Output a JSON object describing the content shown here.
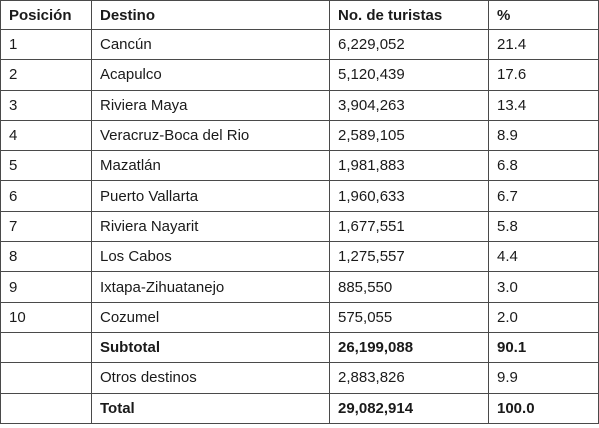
{
  "table": {
    "headers": [
      "Posición",
      "Destino",
      "No. de turistas",
      "%"
    ],
    "rows": [
      {
        "position": "1",
        "destination": "Cancún",
        "tourists": "6,229,052",
        "percent": "21.4"
      },
      {
        "position": "2",
        "destination": "Acapulco",
        "tourists": "5,120,439",
        "percent": "17.6"
      },
      {
        "position": "3",
        "destination": "Riviera Maya",
        "tourists": "3,904,263",
        "percent": "13.4"
      },
      {
        "position": "4",
        "destination": "Veracruz-Boca del Rio",
        "tourists": "2,589,105",
        "percent": "8.9"
      },
      {
        "position": "5",
        "destination": "Mazatlán",
        "tourists": "1,981,883",
        "percent": "6.8"
      },
      {
        "position": "6",
        "destination": "Puerto Vallarta",
        "tourists": "1,960,633",
        "percent": "6.7"
      },
      {
        "position": "7",
        "destination": "Riviera Nayarit",
        "tourists": "1,677,551",
        "percent": "5.8"
      },
      {
        "position": "8",
        "destination": "Los Cabos",
        "tourists": "1,275,557",
        "percent": "4.4"
      },
      {
        "position": "9",
        "destination": "Ixtapa-Zihuatanejo",
        "tourists": "885,550",
        "percent": "3.0"
      },
      {
        "position": "10",
        "destination": "Cozumel",
        "tourists": "575,055",
        "percent": "2.0"
      }
    ],
    "subtotal": {
      "label": "Subtotal",
      "tourists": "26,199,088",
      "percent": "90.1"
    },
    "others": {
      "label": "Otros destinos",
      "tourists": "2,883,826",
      "percent": "9.9"
    },
    "total": {
      "label": "Total",
      "tourists": "29,082,914",
      "percent": "100.0"
    }
  }
}
